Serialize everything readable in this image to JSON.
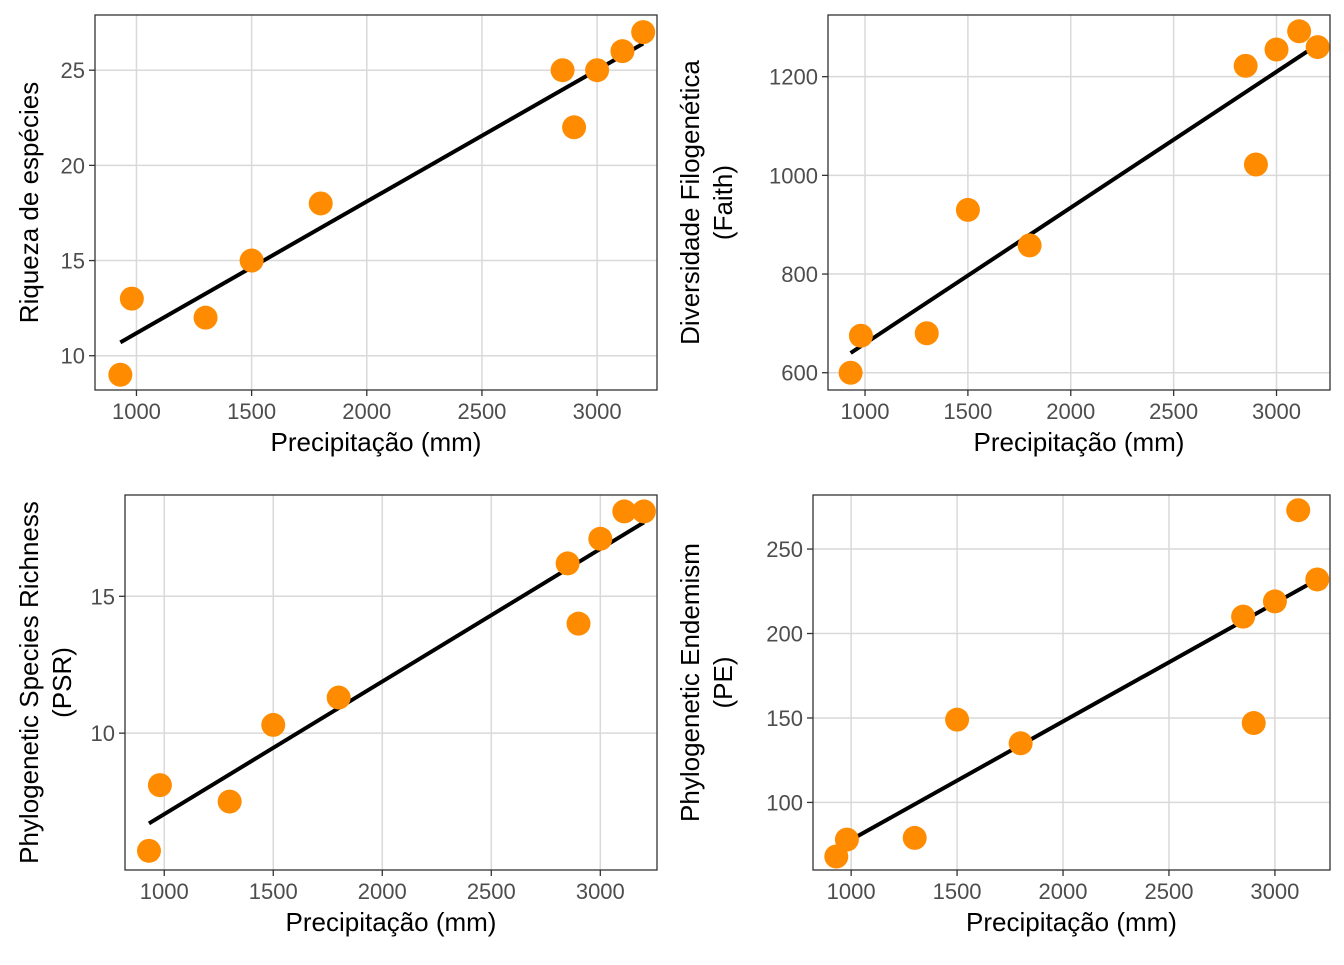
{
  "chart_data": [
    {
      "type": "scatter",
      "xlabel": "Precipitação (mm)",
      "ylabel": [
        "Riqueza de espécies"
      ],
      "xlim": [
        820,
        3260
      ],
      "ylim": [
        8.2,
        27.9
      ],
      "xticks": [
        1000,
        1500,
        2000,
        2500,
        3000
      ],
      "yticks": [
        10,
        15,
        20,
        25
      ],
      "grid": true,
      "point_color": "#FF8C00",
      "x": [
        930,
        980,
        1300,
        1500,
        1800,
        2850,
        2900,
        3000,
        3110,
        3200
      ],
      "y": [
        9,
        13,
        12,
        15,
        18,
        25,
        22,
        25,
        26,
        27
      ],
      "fit_line": {
        "x": [
          930,
          3200
        ],
        "y": [
          10.7,
          26.4
        ]
      }
    },
    {
      "type": "scatter",
      "xlabel": "Precipitação (mm)",
      "ylabel": [
        "Diversidade Filogenética",
        "(Faith)"
      ],
      "xlim": [
        820,
        3260
      ],
      "ylim": [
        565,
        1325
      ],
      "xticks": [
        1000,
        1500,
        2000,
        2500,
        3000
      ],
      "yticks": [
        600,
        800,
        1000,
        1200
      ],
      "grid": true,
      "point_color": "#FF8C00",
      "x": [
        930,
        980,
        1300,
        1500,
        1800,
        2850,
        2900,
        3000,
        3110,
        3200
      ],
      "y": [
        600,
        675,
        680,
        930,
        858,
        1222,
        1022,
        1255,
        1292,
        1260
      ],
      "fit_line": {
        "x": [
          930,
          3200
        ],
        "y": [
          640,
          1265
        ]
      }
    },
    {
      "type": "scatter",
      "xlabel": "Precipitação (mm)",
      "ylabel": [
        "Phylogenetic Species Richness",
        "(PSR)"
      ],
      "xlim": [
        820,
        3260
      ],
      "ylim": [
        5.0,
        18.7
      ],
      "xticks": [
        1000,
        1500,
        2000,
        2500,
        3000
      ],
      "yticks": [
        10,
        15
      ],
      "grid": true,
      "point_color": "#FF8C00",
      "x": [
        930,
        980,
        1300,
        1500,
        1800,
        2850,
        2900,
        3000,
        3110,
        3200
      ],
      "y": [
        5.7,
        8.1,
        7.5,
        10.3,
        11.3,
        16.2,
        14.0,
        17.1,
        18.1,
        18.1
      ],
      "fit_line": {
        "x": [
          930,
          3200
        ],
        "y": [
          6.7,
          17.7
        ]
      }
    },
    {
      "type": "scatter",
      "xlabel": "Precipitação (mm)",
      "ylabel": [
        "Phylogenetic Endemism",
        "(PE)"
      ],
      "xlim": [
        820,
        3260
      ],
      "ylim": [
        60,
        282
      ],
      "xticks": [
        1000,
        1500,
        2000,
        2500,
        3000
      ],
      "yticks": [
        100,
        150,
        200,
        250
      ],
      "grid": true,
      "point_color": "#FF8C00",
      "x": [
        930,
        980,
        1300,
        1500,
        1800,
        2850,
        2900,
        3000,
        3110,
        3200
      ],
      "y": [
        68,
        78,
        79,
        149,
        135,
        210,
        147,
        219,
        273,
        232
      ],
      "fit_line": {
        "x": [
          930,
          3200
        ],
        "y": [
          73,
          232
        ]
      }
    }
  ]
}
